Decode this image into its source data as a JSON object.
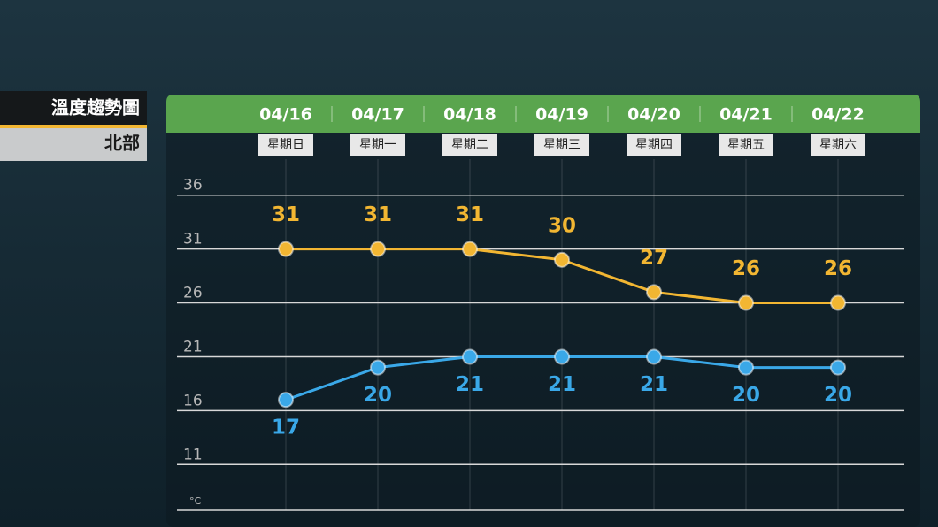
{
  "chart_data": {
    "type": "line",
    "title": "溫度趨勢圖",
    "subtitle": "北部",
    "categories": [
      "04/16",
      "04/17",
      "04/18",
      "04/19",
      "04/20",
      "04/21",
      "04/22"
    ],
    "weekdays": [
      "星期日",
      "星期一",
      "星期二",
      "星期三",
      "星期四",
      "星期五",
      "星期六"
    ],
    "series": [
      {
        "color": "#f2b632",
        "values": [
          31,
          31,
          31,
          30,
          27,
          26,
          26
        ]
      },
      {
        "color": "#3aa8e8",
        "values": [
          17,
          20,
          21,
          21,
          21,
          20,
          20
        ]
      }
    ],
    "ylim": [
      7,
      40
    ],
    "yticks": [
      36,
      31,
      26,
      21,
      16,
      11
    ],
    "unit": "°C",
    "grid": true
  }
}
